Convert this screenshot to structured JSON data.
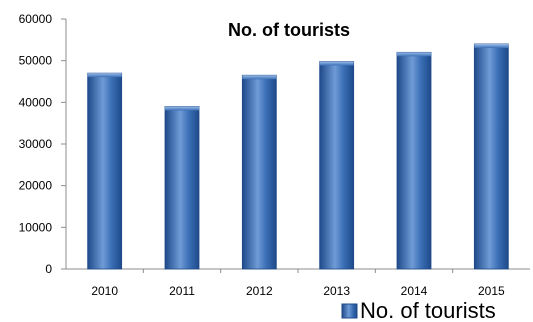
{
  "chart_data": {
    "type": "bar",
    "title": "No. of tourists",
    "categories": [
      "2010",
      "2011",
      "2012",
      "2013",
      "2014",
      "2015"
    ],
    "series": [
      {
        "name": "No. of tourists",
        "values": [
          47000,
          39000,
          46500,
          49800,
          52000,
          54000
        ]
      }
    ],
    "ylim": [
      0,
      60000
    ],
    "yticks": [
      "0",
      "10000",
      "20000",
      "30000",
      "40000",
      "50000",
      "60000"
    ],
    "grid": false,
    "legend": "bottom-right",
    "colors": {
      "bar": "#3b6fb6",
      "bar_light": "#6f9bd6",
      "bar_dark": "#1e4a8a"
    }
  }
}
